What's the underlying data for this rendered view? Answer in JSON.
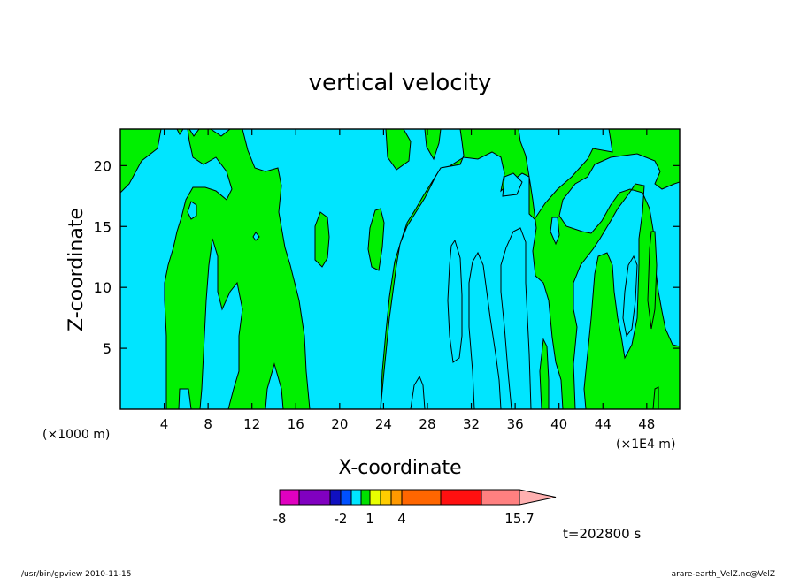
{
  "chart_data": {
    "type": "heatmap",
    "title": "vertical velocity",
    "xlabel": "X-coordinate",
    "ylabel": "Z-coordinate",
    "x_unit_left": "(×1000 m)",
    "x_unit_right": "(×1E4 m)",
    "xlim": [
      0,
      51
    ],
    "ylim": [
      0,
      23
    ],
    "x_ticks": [
      4,
      8,
      12,
      16,
      20,
      24,
      28,
      32,
      36,
      40,
      44,
      48
    ],
    "y_ticks": [
      5,
      10,
      15,
      20
    ],
    "colors": {
      "cyan": "#00e5ff",
      "green": "#00f000",
      "contour": "#000000"
    },
    "colorbar": {
      "colors": [
        "#e000c0",
        "#8000c0",
        "#1010c0",
        "#0050ff",
        "#00e5ff",
        "#00e000",
        "#e8ff00",
        "#ffcc00",
        "#ff9900",
        "#ff6600",
        "#ff1010",
        "#ff8080",
        "#ffb0b0"
      ],
      "labels": [
        "-8",
        "-2",
        "1",
        "4",
        "15.7"
      ]
    },
    "time_label": "t=202800 s"
  },
  "footer": {
    "left": "/usr/bin/gpview   2010-11-15",
    "right": "arare-earth_VelZ.nc@VelZ"
  }
}
